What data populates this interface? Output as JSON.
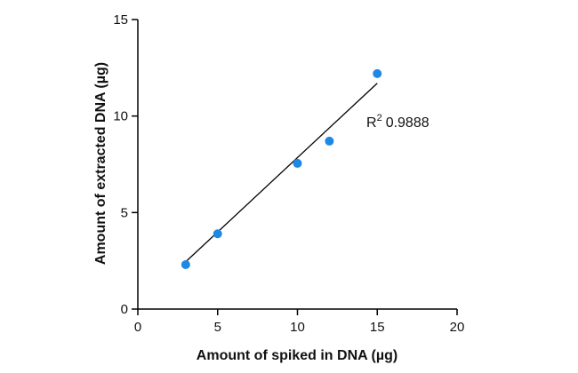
{
  "chart_data": {
    "type": "scatter",
    "title": "",
    "xlabel": "Amount of spiked in DNA (µg)",
    "ylabel": "Amount of extracted DNA (µg)",
    "xlim": [
      0,
      20
    ],
    "ylim": [
      0,
      15
    ],
    "xticks": [
      0,
      5,
      10,
      15,
      20
    ],
    "yticks": [
      0,
      5,
      10,
      15
    ],
    "grid": false,
    "legend": "none",
    "series": [
      {
        "x": [
          3,
          5,
          10,
          12,
          15
        ],
        "y": [
          2.3,
          3.9,
          7.55,
          8.7,
          12.2
        ],
        "color": "#1e88e5"
      }
    ],
    "fit_line": {
      "x": [
        3,
        15
      ],
      "y": [
        2.45,
        11.7
      ],
      "color": "#000000"
    },
    "annotation": {
      "label": "R",
      "superscript": "2",
      "value": "0.9888"
    }
  }
}
